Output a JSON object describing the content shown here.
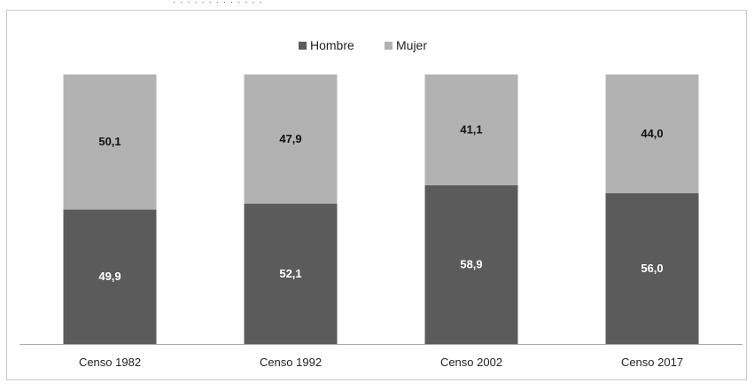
{
  "header": {
    "partial_text": "· ·  · · ·  ·  · ·  ·  ·  ·  · ·"
  },
  "chart_data": {
    "type": "bar",
    "stacked": true,
    "categories": [
      "Censo 1982",
      "Censo 1992",
      "Censo 2002",
      "Censo 2017"
    ],
    "series": [
      {
        "name": "Hombre",
        "values": [
          49.9,
          52.1,
          58.9,
          56.0
        ],
        "labels": [
          "49,9",
          "52,1",
          "58,9",
          "56,0"
        ],
        "color": "#5b5b5b",
        "label_color": "#ffffff"
      },
      {
        "name": "Mujer",
        "values": [
          50.1,
          47.9,
          41.1,
          44.0
        ],
        "labels": [
          "50,1",
          "47,9",
          "41,1",
          "44,0"
        ],
        "color": "#b2b2b2",
        "label_color": "#111111"
      }
    ],
    "ylim": [
      0,
      100
    ],
    "grid": false,
    "legend_position": "top-center",
    "axis_color": "#aaaaaa"
  }
}
